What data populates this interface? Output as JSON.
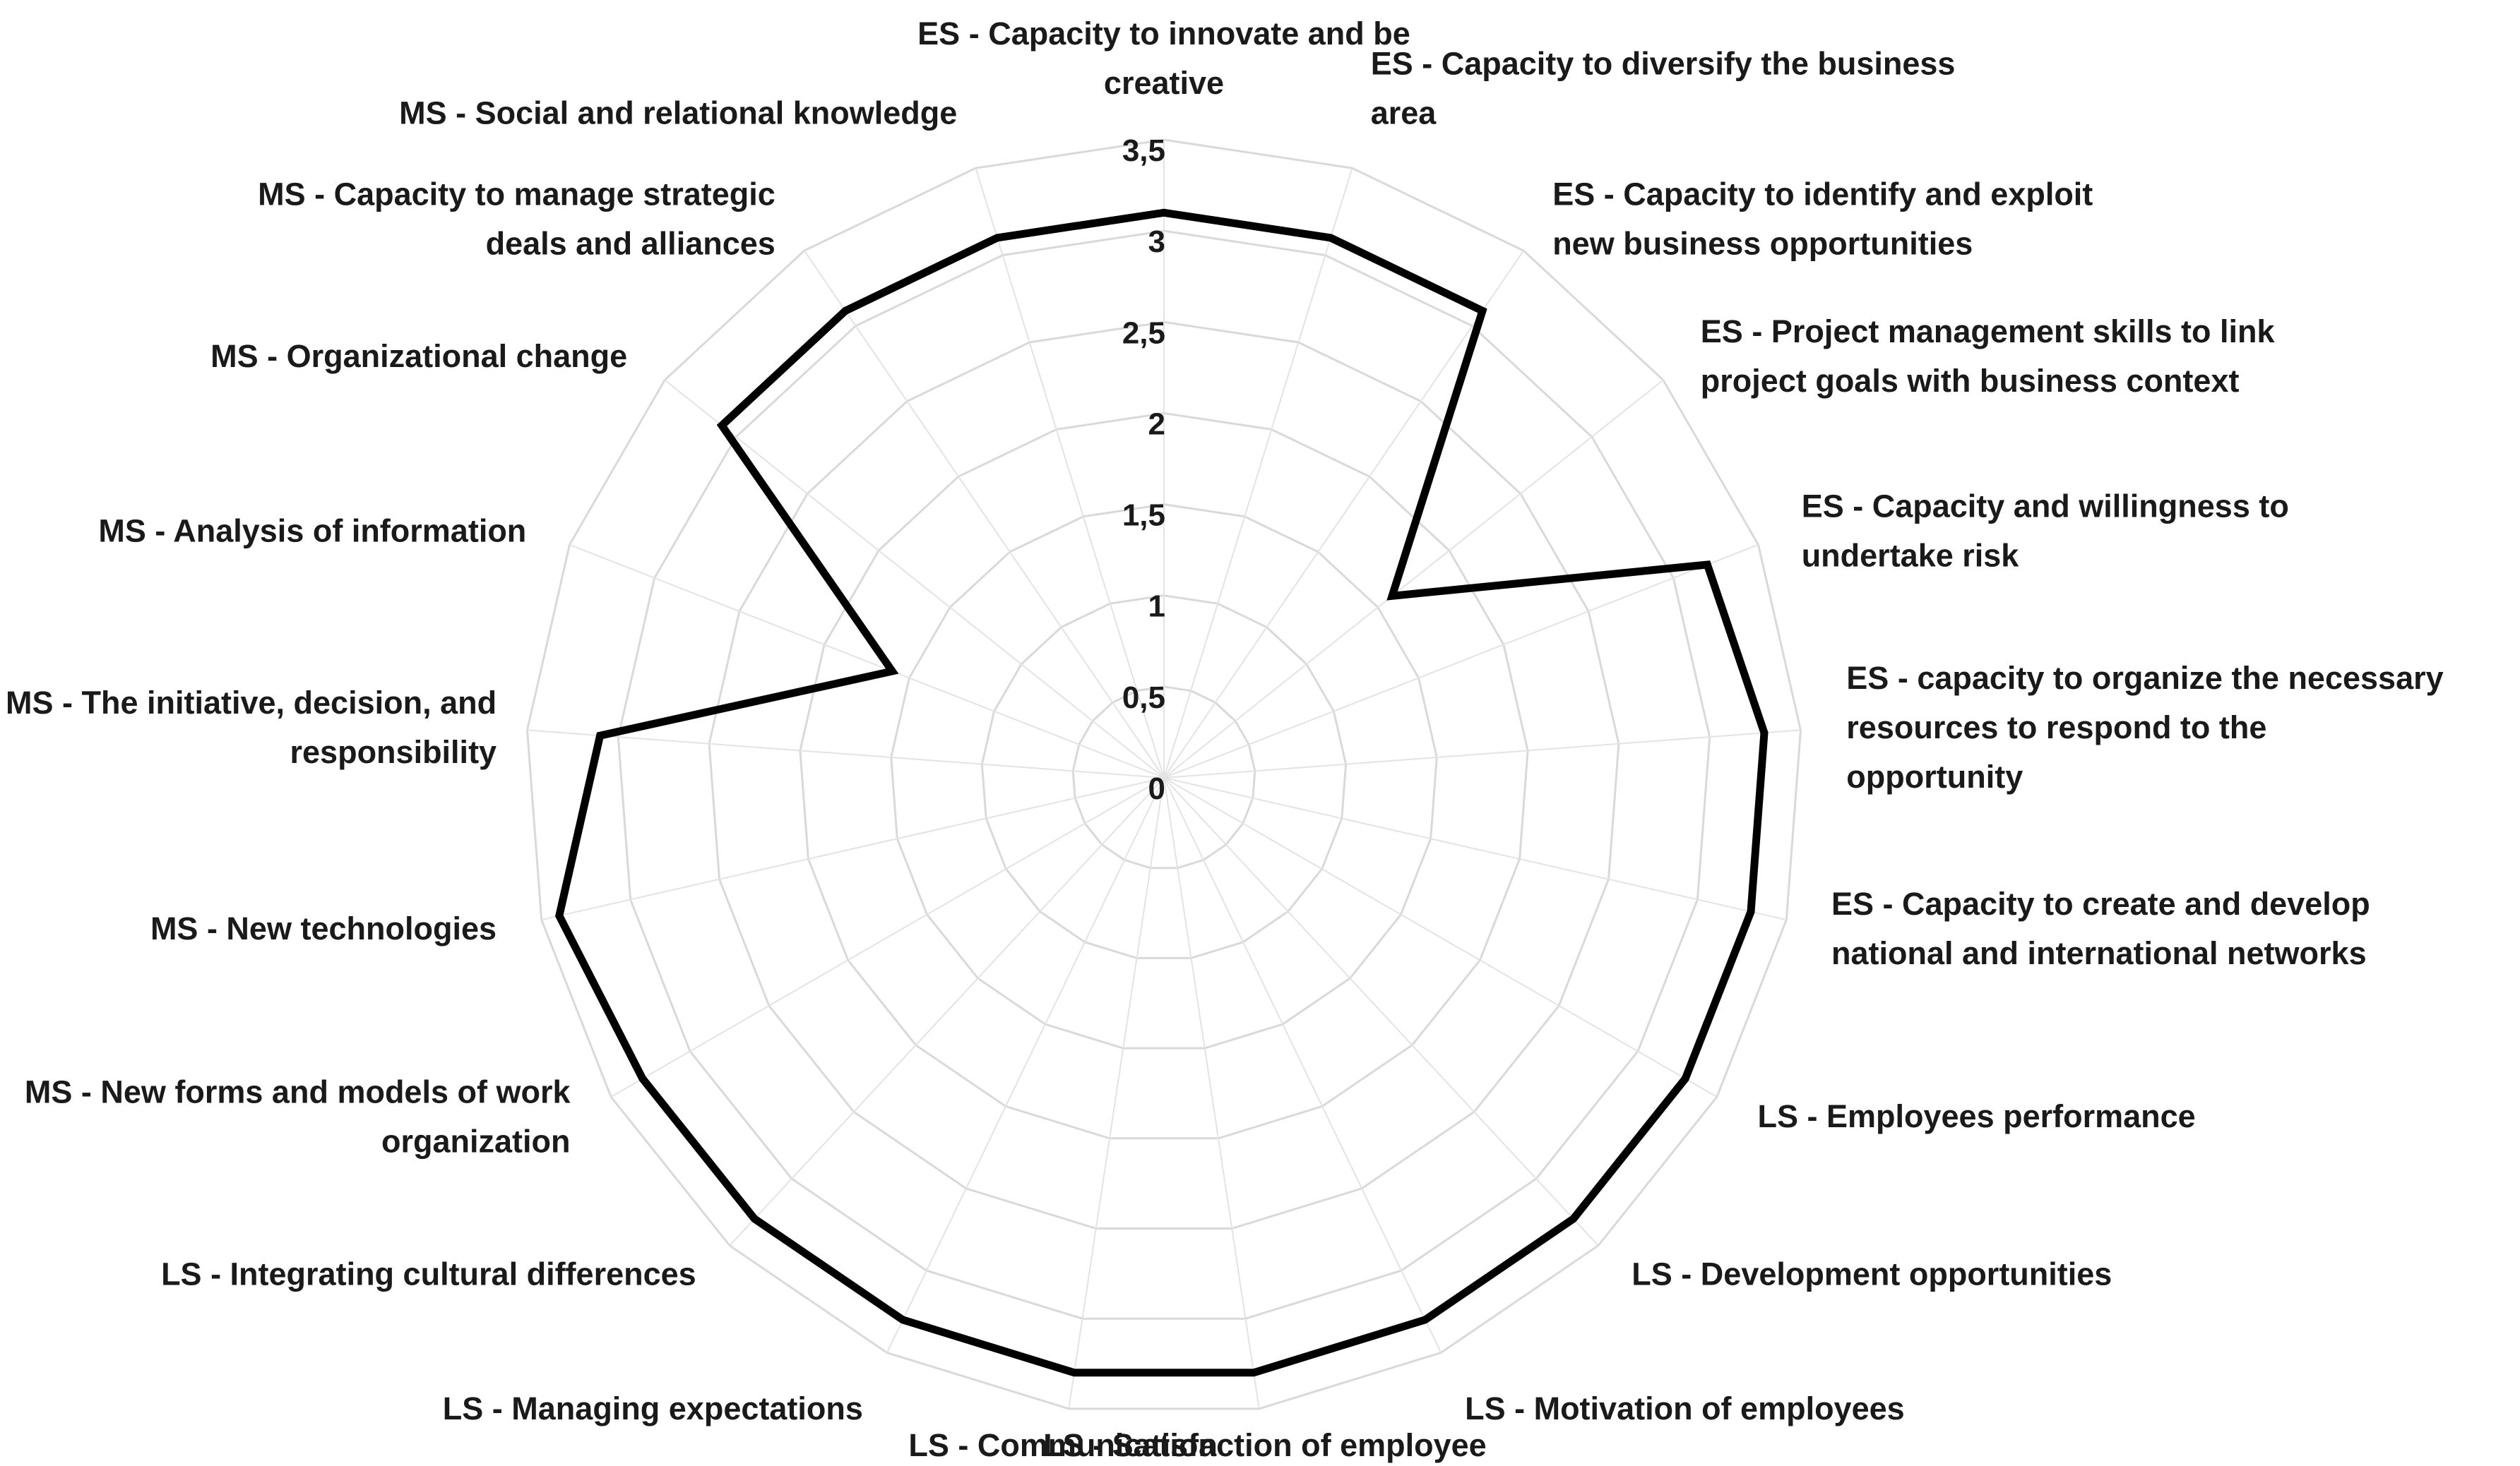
{
  "chart_data": {
    "type": "radar",
    "title": "",
    "rlim": [
      0,
      3.5
    ],
    "ticks": [
      "0",
      "0,5",
      "1",
      "1,5",
      "2",
      "2,5",
      "3",
      "3,5"
    ],
    "tick_values": [
      0,
      0.5,
      1,
      1.5,
      2,
      2.5,
      3,
      3.5
    ],
    "grid": true,
    "legend": "none",
    "line_color": "#000000",
    "grid_color": "#d9d9d9",
    "categories": [
      [
        "ES - Capacity to innovate and be",
        "creative"
      ],
      [
        "ES - Capacity to diversify the business",
        "area"
      ],
      [
        "ES - Capacity to identify and exploit",
        "new business opportunities"
      ],
      [
        "ES - Project management skills to link",
        "project goals with business context"
      ],
      [
        "ES - Capacity and willingness to",
        "undertake risk"
      ],
      [
        "ES - capacity to organize the necessary",
        "resources to respond to the",
        "opportunity"
      ],
      [
        "ES - Capacity to create and develop",
        "national and international networks"
      ],
      [
        "LS - Employees performance"
      ],
      [
        "LS - Development opportunities"
      ],
      [
        "LS - Motivation of employees"
      ],
      [
        "LS - Satisfaction of employee"
      ],
      [
        "LS - Communication"
      ],
      [
        "LS - Managing expectations"
      ],
      [
        "LS - Integrating cultural differences"
      ],
      [
        "MS - New forms and models of work",
        "organization"
      ],
      [
        "MS - New technologies"
      ],
      [
        "MS - The initiative, decision, and",
        "responsibility"
      ],
      [
        "MS - Analysis of information"
      ],
      [
        "MS - Organizational change"
      ],
      [
        "MS - Capacity to manage strategic",
        "deals and alliances"
      ],
      [
        "MS - Social and relational knowledge"
      ]
    ],
    "values": [
      3.1,
      3.1,
      3.1,
      1.6,
      3.2,
      3.3,
      3.3,
      3.3,
      3.3,
      3.3,
      3.3,
      3.3,
      3.3,
      3.3,
      3.3,
      3.4,
      3.1,
      1.6,
      3.1,
      3.1,
      3.1
    ]
  }
}
